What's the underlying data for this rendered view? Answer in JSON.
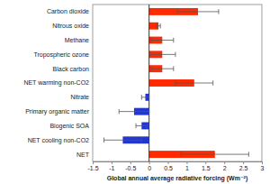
{
  "chart_data": {
    "type": "bar",
    "orientation": "horizontal",
    "x_label": "Global annual average radiative forcing (Wm⁻²)",
    "categories": [
      "Carbon dioxide",
      "Nitrous oxide",
      "Methane",
      "Tropospheric ozone",
      "Black carbon",
      "NET warming non-CO2",
      "Nitrate",
      "Primary organic matter",
      "Biogenic SOA",
      "NET cooling non-CO2",
      "NET"
    ],
    "values": [
      1.3,
      0.25,
      0.35,
      0.35,
      0.35,
      1.2,
      -0.1,
      -0.4,
      -0.2,
      -0.7,
      1.75
    ],
    "errors": [
      0.55,
      0.05,
      0.3,
      0.35,
      0.3,
      0.5,
      0.1,
      0.4,
      0.15,
      0.5,
      0.9
    ],
    "colors": [
      "#ff2a00",
      "#ff2a00",
      "#ff2a00",
      "#ff2a00",
      "#ff2a00",
      "#ff2a00",
      "#2236d0",
      "#2236d0",
      "#2236d0",
      "#2236d0",
      "#ff2a00"
    ],
    "xlim": [
      -1.5,
      3
    ],
    "xticks": [
      -1.5,
      -1,
      -0.5,
      0,
      0.5,
      1,
      1.5,
      2,
      2.5,
      3
    ]
  }
}
